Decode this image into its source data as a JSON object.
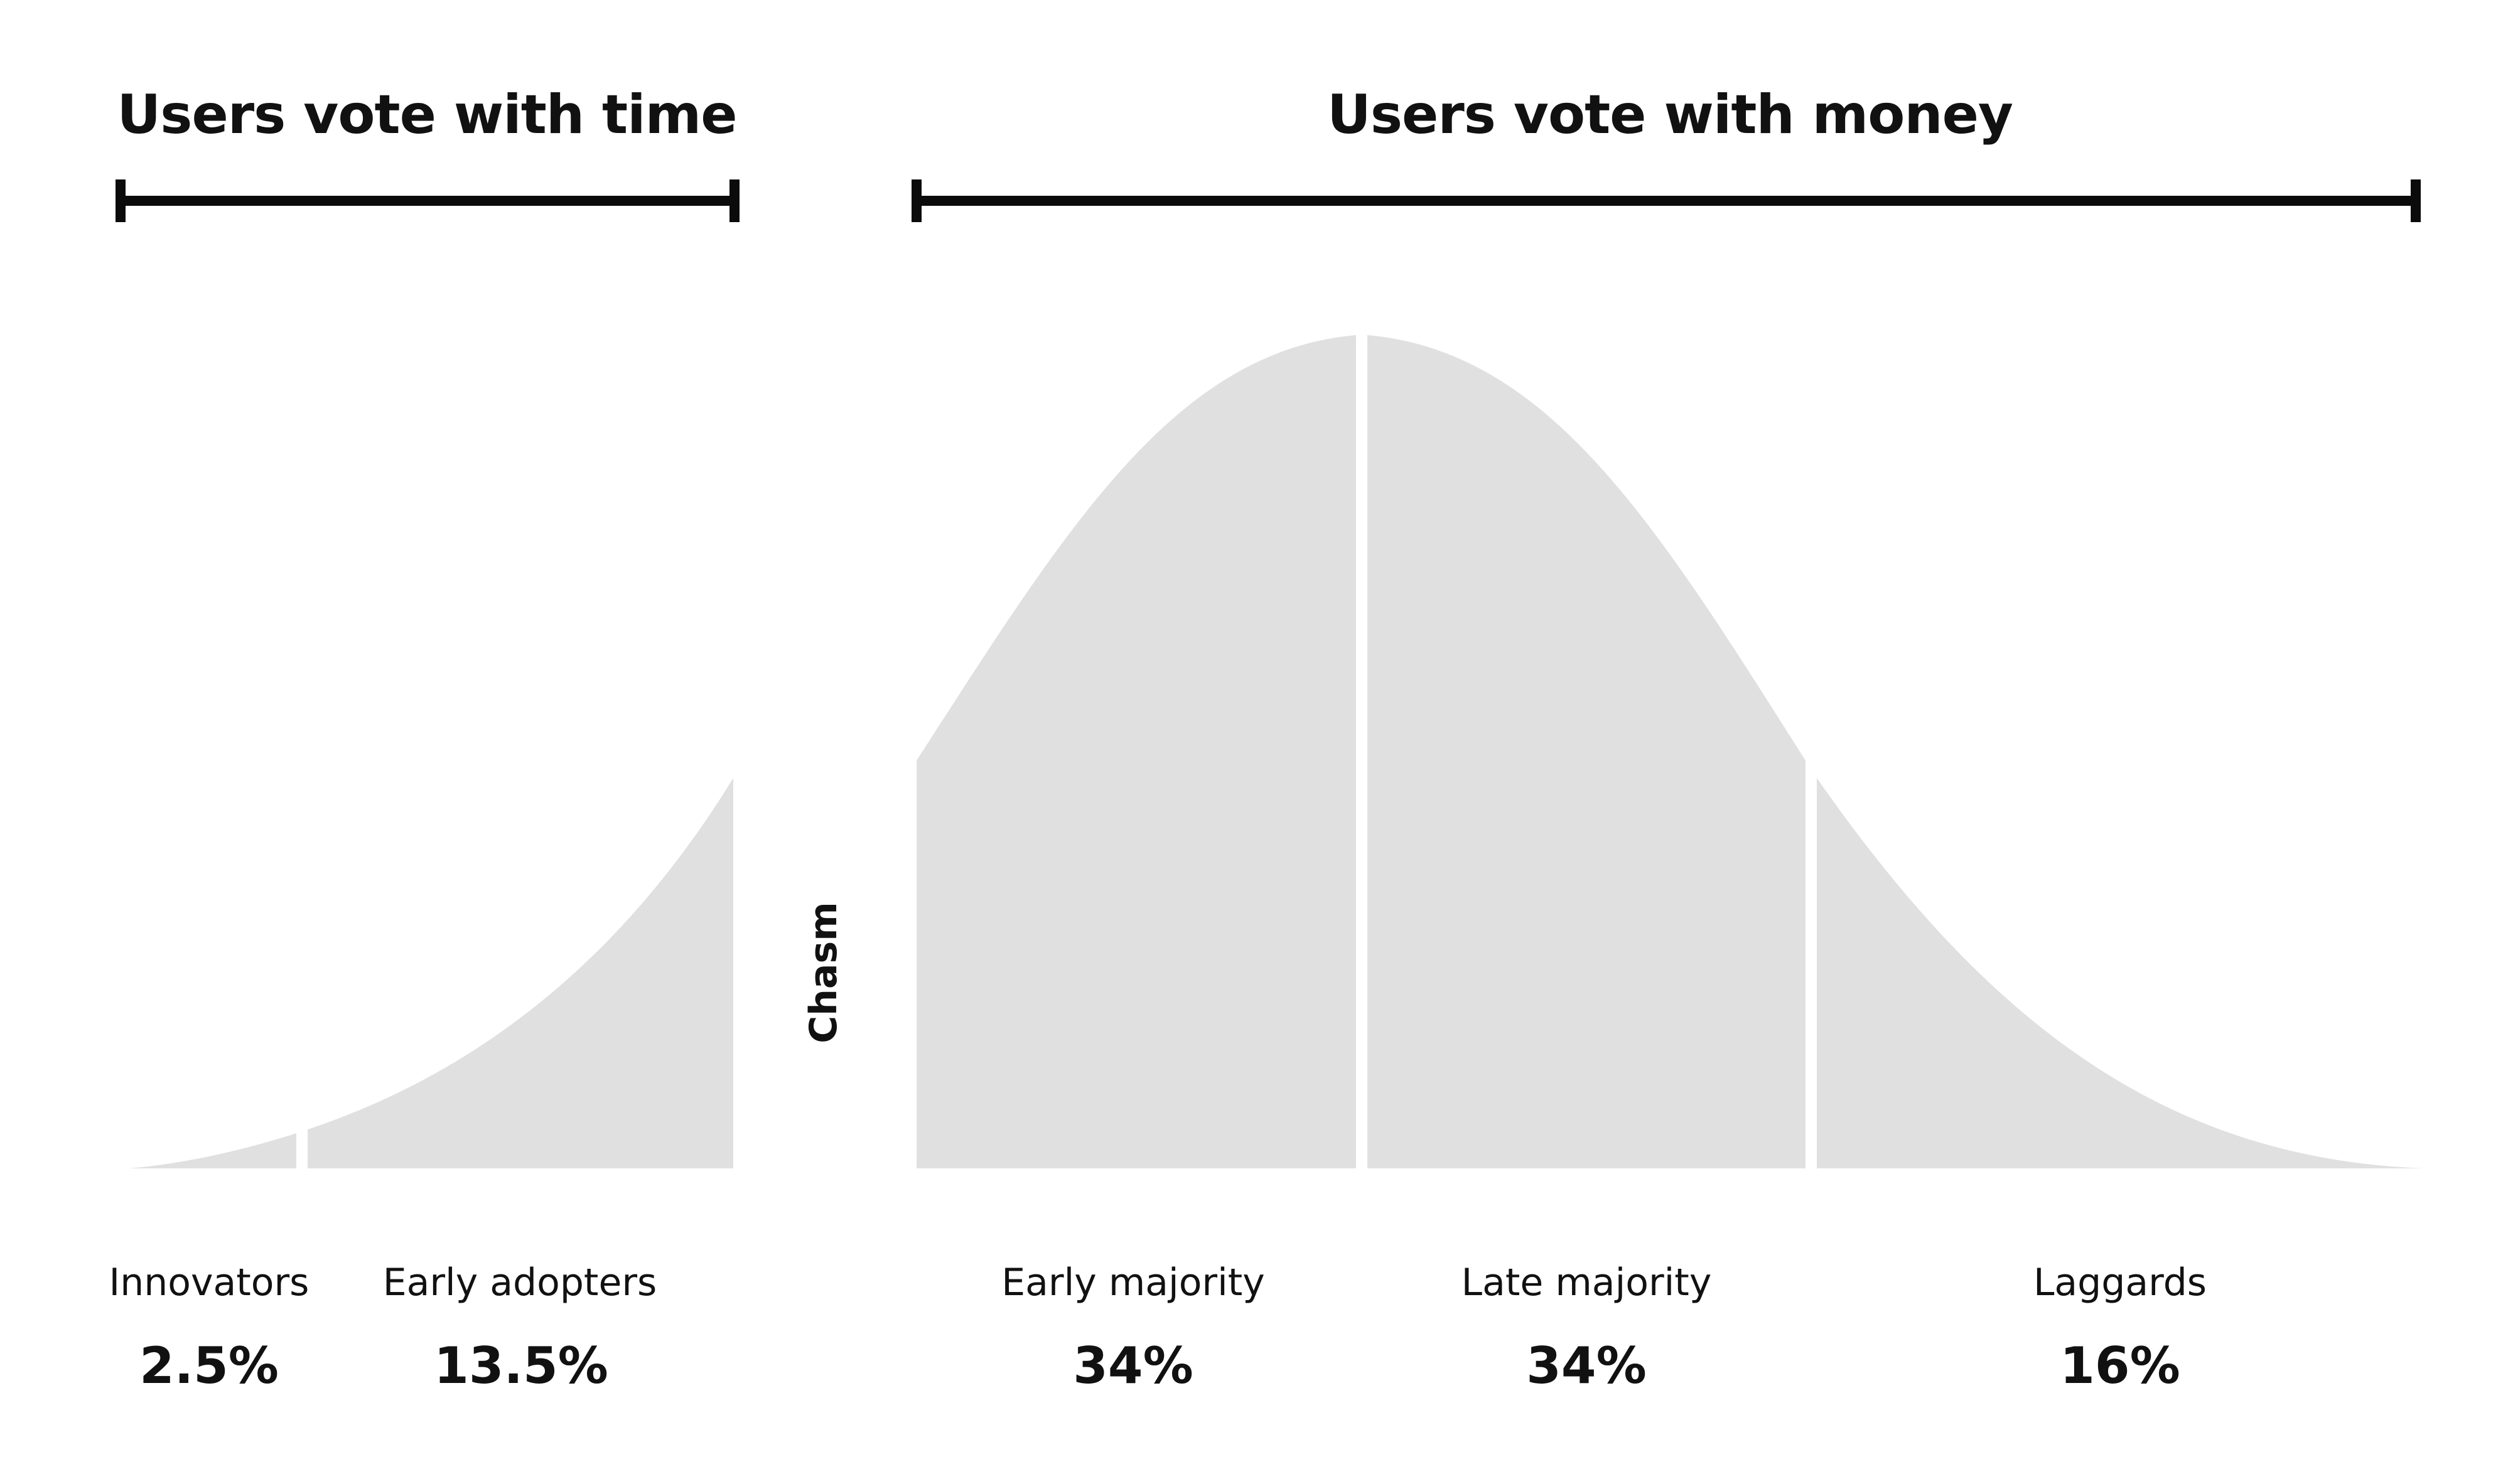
{
  "groups": {
    "time": {
      "label": "Users vote with time"
    },
    "money": {
      "label": "Users vote with money"
    }
  },
  "chasm_label": "Chasm",
  "segments": [
    {
      "label": "Innovators",
      "percent": "2.5%"
    },
    {
      "label": "Early adopters",
      "percent": "13.5%"
    },
    {
      "label": "Early majority",
      "percent": "34%"
    },
    {
      "label": "Late majority",
      "percent": "34%"
    },
    {
      "label": "Laggards",
      "percent": "16%"
    }
  ],
  "colors": {
    "fill": "#e0e0e0",
    "ink": "#0b0b0b",
    "background": "#ffffff"
  }
}
